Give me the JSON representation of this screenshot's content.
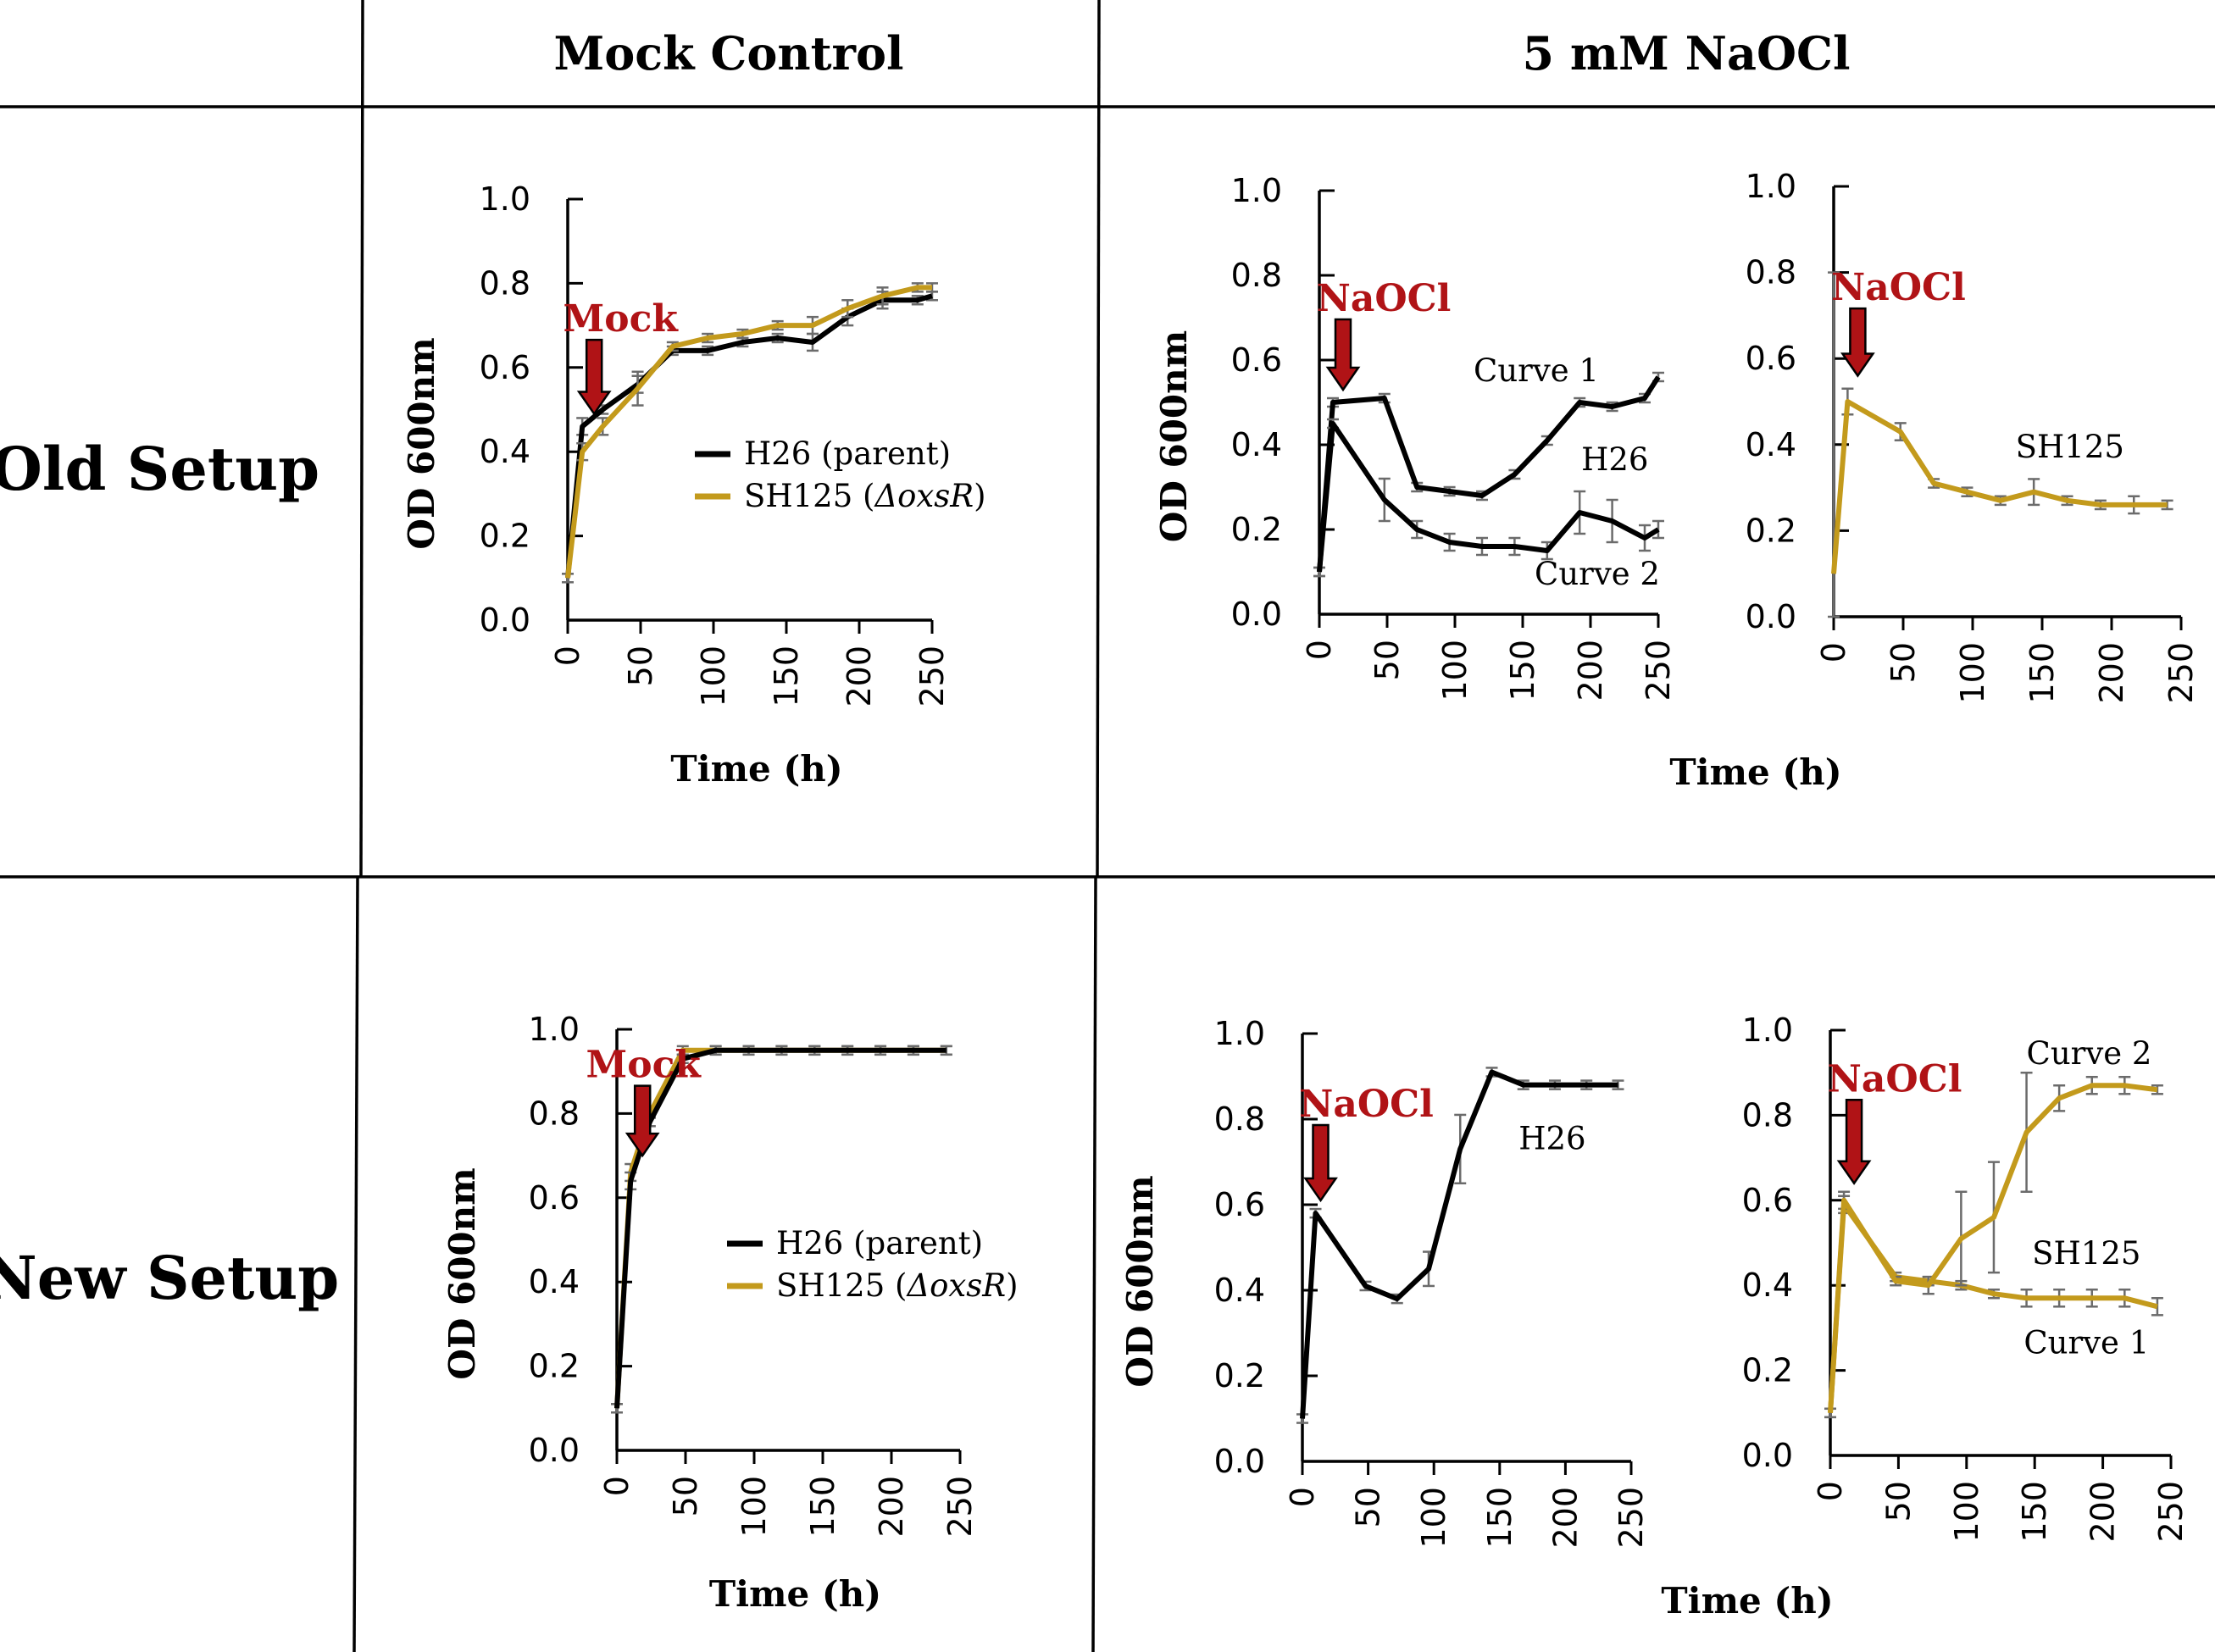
{
  "headers": {
    "col1": "Mock Control",
    "col2": "5 mM NaOCl",
    "row1": "Old Setup",
    "row2": "New Setup"
  },
  "colors": {
    "H26": "#000000",
    "SH125": "#c39a1c",
    "treatment": "#b01316",
    "error_bar": "#6b6b6b"
  },
  "chart_data": [
    {
      "id": "old_mock",
      "type": "line",
      "xlabel": "Time (h)",
      "ylabel": "OD 600nm",
      "xlim": [
        0,
        250
      ],
      "ylim": [
        0,
        1.0
      ],
      "xticks": [
        "0",
        "50",
        "100",
        "150",
        "200",
        "250"
      ],
      "yticks": [
        "0.0",
        "0.2",
        "0.4",
        "0.6",
        "0.8",
        "1.0"
      ],
      "treatment": {
        "label": "Mock",
        "x": 10
      },
      "legend": [
        {
          "label": "H26 (parent)",
          "series": "H26"
        },
        {
          "label": "SH125 (",
          "italic": "ΔoxsR",
          "suffix": ")",
          "series": "SH125"
        }
      ],
      "annotations": [],
      "series": [
        {
          "name": "H26 (parent)",
          "color_key": "H26",
          "x": [
            0,
            10,
            24,
            48,
            72,
            96,
            120,
            144,
            168,
            192,
            216,
            240,
            250
          ],
          "y": [
            0.1,
            0.46,
            0.5,
            0.56,
            0.64,
            0.64,
            0.66,
            0.67,
            0.66,
            0.72,
            0.76,
            0.76,
            0.77
          ],
          "err": [
            0.01,
            0.02,
            0.01,
            0.02,
            0.01,
            0.01,
            0.01,
            0.01,
            0.02,
            0.02,
            0.02,
            0.01,
            0.01
          ]
        },
        {
          "name": "SH125 (ΔoxsR)",
          "color_key": "SH125",
          "x": [
            0,
            10,
            24,
            48,
            72,
            96,
            120,
            144,
            168,
            192,
            216,
            240,
            250
          ],
          "y": [
            0.1,
            0.4,
            0.46,
            0.55,
            0.65,
            0.67,
            0.68,
            0.7,
            0.7,
            0.74,
            0.77,
            0.79,
            0.79
          ],
          "err": [
            0.01,
            0.02,
            0.02,
            0.04,
            0.01,
            0.01,
            0.01,
            0.01,
            0.02,
            0.02,
            0.02,
            0.01,
            0.01
          ]
        }
      ]
    },
    {
      "id": "old_naocl_h26",
      "type": "line",
      "xlabel": "",
      "ylabel": "OD 600nm",
      "xlim": [
        0,
        250
      ],
      "ylim": [
        0,
        1.0
      ],
      "xticks": [
        "0",
        "50",
        "100",
        "150",
        "200",
        "250"
      ],
      "yticks": [
        "0.0",
        "0.2",
        "0.4",
        "0.6",
        "0.8",
        "1.0"
      ],
      "treatment": {
        "label": "NaOCl",
        "x": 10
      },
      "legend": [],
      "annotations": [
        {
          "text": "Curve 1",
          "x": 160,
          "y": 0.55
        },
        {
          "text": "H26",
          "x": 218,
          "y": 0.34
        },
        {
          "text": "Curve 2",
          "x": 205,
          "y": 0.07
        }
      ],
      "series": [
        {
          "name": "Curve 1",
          "color_key": "H26",
          "x": [
            0,
            10,
            48,
            72,
            96,
            120,
            144,
            168,
            192,
            216,
            240,
            250
          ],
          "y": [
            0.1,
            0.5,
            0.51,
            0.3,
            0.29,
            0.28,
            0.33,
            0.41,
            0.5,
            0.49,
            0.51,
            0.56
          ],
          "err": [
            0.01,
            0.01,
            0.01,
            0.01,
            0.01,
            0.01,
            0.01,
            0.01,
            0.01,
            0.01,
            0.01,
            0.01
          ]
        },
        {
          "name": "Curve 2",
          "color_key": "H26",
          "x": [
            0,
            10,
            48,
            72,
            96,
            120,
            144,
            168,
            192,
            216,
            240,
            250
          ],
          "y": [
            0.1,
            0.45,
            0.27,
            0.2,
            0.17,
            0.16,
            0.16,
            0.15,
            0.24,
            0.22,
            0.18,
            0.2
          ],
          "err": [
            0.01,
            0.01,
            0.05,
            0.02,
            0.02,
            0.02,
            0.02,
            0.02,
            0.05,
            0.05,
            0.03,
            0.02
          ]
        }
      ]
    },
    {
      "id": "old_naocl_sh125",
      "type": "line",
      "xlabel": "",
      "ylabel": "",
      "xlim": [
        0,
        250
      ],
      "ylim": [
        0,
        1.0
      ],
      "xticks": [
        "0",
        "50",
        "100",
        "150",
        "200",
        "250"
      ],
      "yticks": [
        "0.0",
        "0.2",
        "0.4",
        "0.6",
        "0.8",
        "1.0"
      ],
      "treatment": {
        "label": "NaOCl",
        "x": 10
      },
      "legend": [],
      "annotations": [
        {
          "text": "SH125",
          "x": 170,
          "y": 0.37
        }
      ],
      "series": [
        {
          "name": "SH125",
          "color_key": "SH125",
          "x": [
            0,
            10,
            48,
            72,
            96,
            120,
            144,
            168,
            192,
            216,
            240
          ],
          "y": [
            0.1,
            0.5,
            0.43,
            0.31,
            0.29,
            0.27,
            0.29,
            0.27,
            0.26,
            0.26,
            0.26
          ],
          "err": [
            0.7,
            0.03,
            0.02,
            0.01,
            0.01,
            0.01,
            0.03,
            0.01,
            0.01,
            0.02,
            0.01
          ]
        }
      ]
    },
    {
      "id": "new_mock",
      "type": "line",
      "xlabel": "Time (h)",
      "ylabel": "OD 600nm",
      "xlim": [
        0,
        250
      ],
      "ylim": [
        0,
        1.0
      ],
      "xticks": [
        "0",
        "50",
        "100",
        "150",
        "200",
        "250"
      ],
      "yticks": [
        "0.0",
        "0.2",
        "0.4",
        "0.6",
        "0.8",
        "1.0"
      ],
      "treatment": {
        "label": "Mock",
        "x": 10
      },
      "legend": [
        {
          "label": "H26 (parent)",
          "series": "H26"
        },
        {
          "label": "SH125 (",
          "italic": "ΔoxsR",
          "suffix": ")",
          "series": "SH125"
        }
      ],
      "annotations": [],
      "series": [
        {
          "name": "SH125 (ΔoxsR)",
          "color_key": "SH125",
          "x": [
            0,
            10,
            24,
            48,
            72,
            96,
            120,
            144,
            168,
            192,
            216,
            240
          ],
          "y": [
            0.1,
            0.66,
            0.8,
            0.95,
            0.95,
            0.95,
            0.95,
            0.95,
            0.95,
            0.95,
            0.95,
            0.95
          ],
          "err": [
            0.01,
            0.02,
            0.01,
            0.01,
            0.01,
            0.01,
            0.01,
            0.01,
            0.01,
            0.01,
            0.01,
            0.01
          ]
        },
        {
          "name": "H26 (parent)",
          "color_key": "H26",
          "x": [
            0,
            10,
            24,
            48,
            72,
            96,
            120,
            144,
            168,
            192,
            216,
            240
          ],
          "y": [
            0.1,
            0.64,
            0.78,
            0.93,
            0.95,
            0.95,
            0.95,
            0.95,
            0.95,
            0.95,
            0.95,
            0.95
          ],
          "err": [
            0.01,
            0.02,
            0.01,
            0.01,
            0.01,
            0.01,
            0.01,
            0.01,
            0.01,
            0.01,
            0.01,
            0.01
          ]
        }
      ]
    },
    {
      "id": "new_naocl_h26",
      "type": "line",
      "xlabel": "Time (h)",
      "ylabel": "OD 600nm",
      "xlim": [
        0,
        250
      ],
      "ylim": [
        0,
        1.0
      ],
      "xticks": [
        "0",
        "50",
        "100",
        "150",
        "200",
        "250"
      ],
      "yticks": [
        "0.0",
        "0.2",
        "0.4",
        "0.6",
        "0.8",
        "1.0"
      ],
      "treatment": {
        "label": "NaOCl",
        "x": 10
      },
      "legend": [],
      "annotations": [
        {
          "text": "H26",
          "x": 190,
          "y": 0.73
        }
      ],
      "series": [
        {
          "name": "H26",
          "color_key": "H26",
          "x": [
            0,
            10,
            48,
            72,
            96,
            120,
            144,
            168,
            192,
            216,
            240
          ],
          "y": [
            0.1,
            0.58,
            0.41,
            0.38,
            0.45,
            0.73,
            0.91,
            0.88,
            0.88,
            0.88,
            0.88
          ],
          "err": [
            0.01,
            0.01,
            0.01,
            0.01,
            0.04,
            0.08,
            0.01,
            0.01,
            0.01,
            0.01,
            0.01
          ]
        }
      ]
    },
    {
      "id": "new_naocl_sh125",
      "type": "line",
      "xlabel": "",
      "ylabel": "",
      "xlim": [
        0,
        250
      ],
      "ylim": [
        0,
        1.0
      ],
      "xticks": [
        "0",
        "50",
        "100",
        "150",
        "200",
        "250"
      ],
      "yticks": [
        "0.0",
        "0.2",
        "0.4",
        "0.6",
        "0.8",
        "1.0"
      ],
      "treatment": {
        "label": "NaOCl",
        "x": 10
      },
      "legend": [],
      "annotations": [
        {
          "text": "Curve 2",
          "x": 190,
          "y": 0.92
        },
        {
          "text": "SH125",
          "x": 188,
          "y": 0.45
        },
        {
          "text": "Curve 1",
          "x": 188,
          "y": 0.24
        }
      ],
      "series": [
        {
          "name": "Curve 1",
          "color_key": "SH125",
          "x": [
            0,
            10,
            48,
            72,
            96,
            120,
            144,
            168,
            192,
            216,
            240
          ],
          "y": [
            0.1,
            0.59,
            0.42,
            0.41,
            0.4,
            0.38,
            0.37,
            0.37,
            0.37,
            0.37,
            0.35
          ],
          "err": [
            0.01,
            0.02,
            0.01,
            0.01,
            0.01,
            0.01,
            0.02,
            0.02,
            0.02,
            0.02,
            0.02
          ]
        },
        {
          "name": "Curve 2",
          "color_key": "SH125",
          "x": [
            0,
            10,
            48,
            72,
            96,
            120,
            144,
            168,
            192,
            216,
            240
          ],
          "y": [
            0.1,
            0.6,
            0.41,
            0.4,
            0.51,
            0.56,
            0.76,
            0.84,
            0.87,
            0.87,
            0.86
          ],
          "err": [
            0.01,
            0.02,
            0.01,
            0.02,
            0.11,
            0.13,
            0.14,
            0.03,
            0.02,
            0.02,
            0.01
          ]
        }
      ]
    }
  ]
}
